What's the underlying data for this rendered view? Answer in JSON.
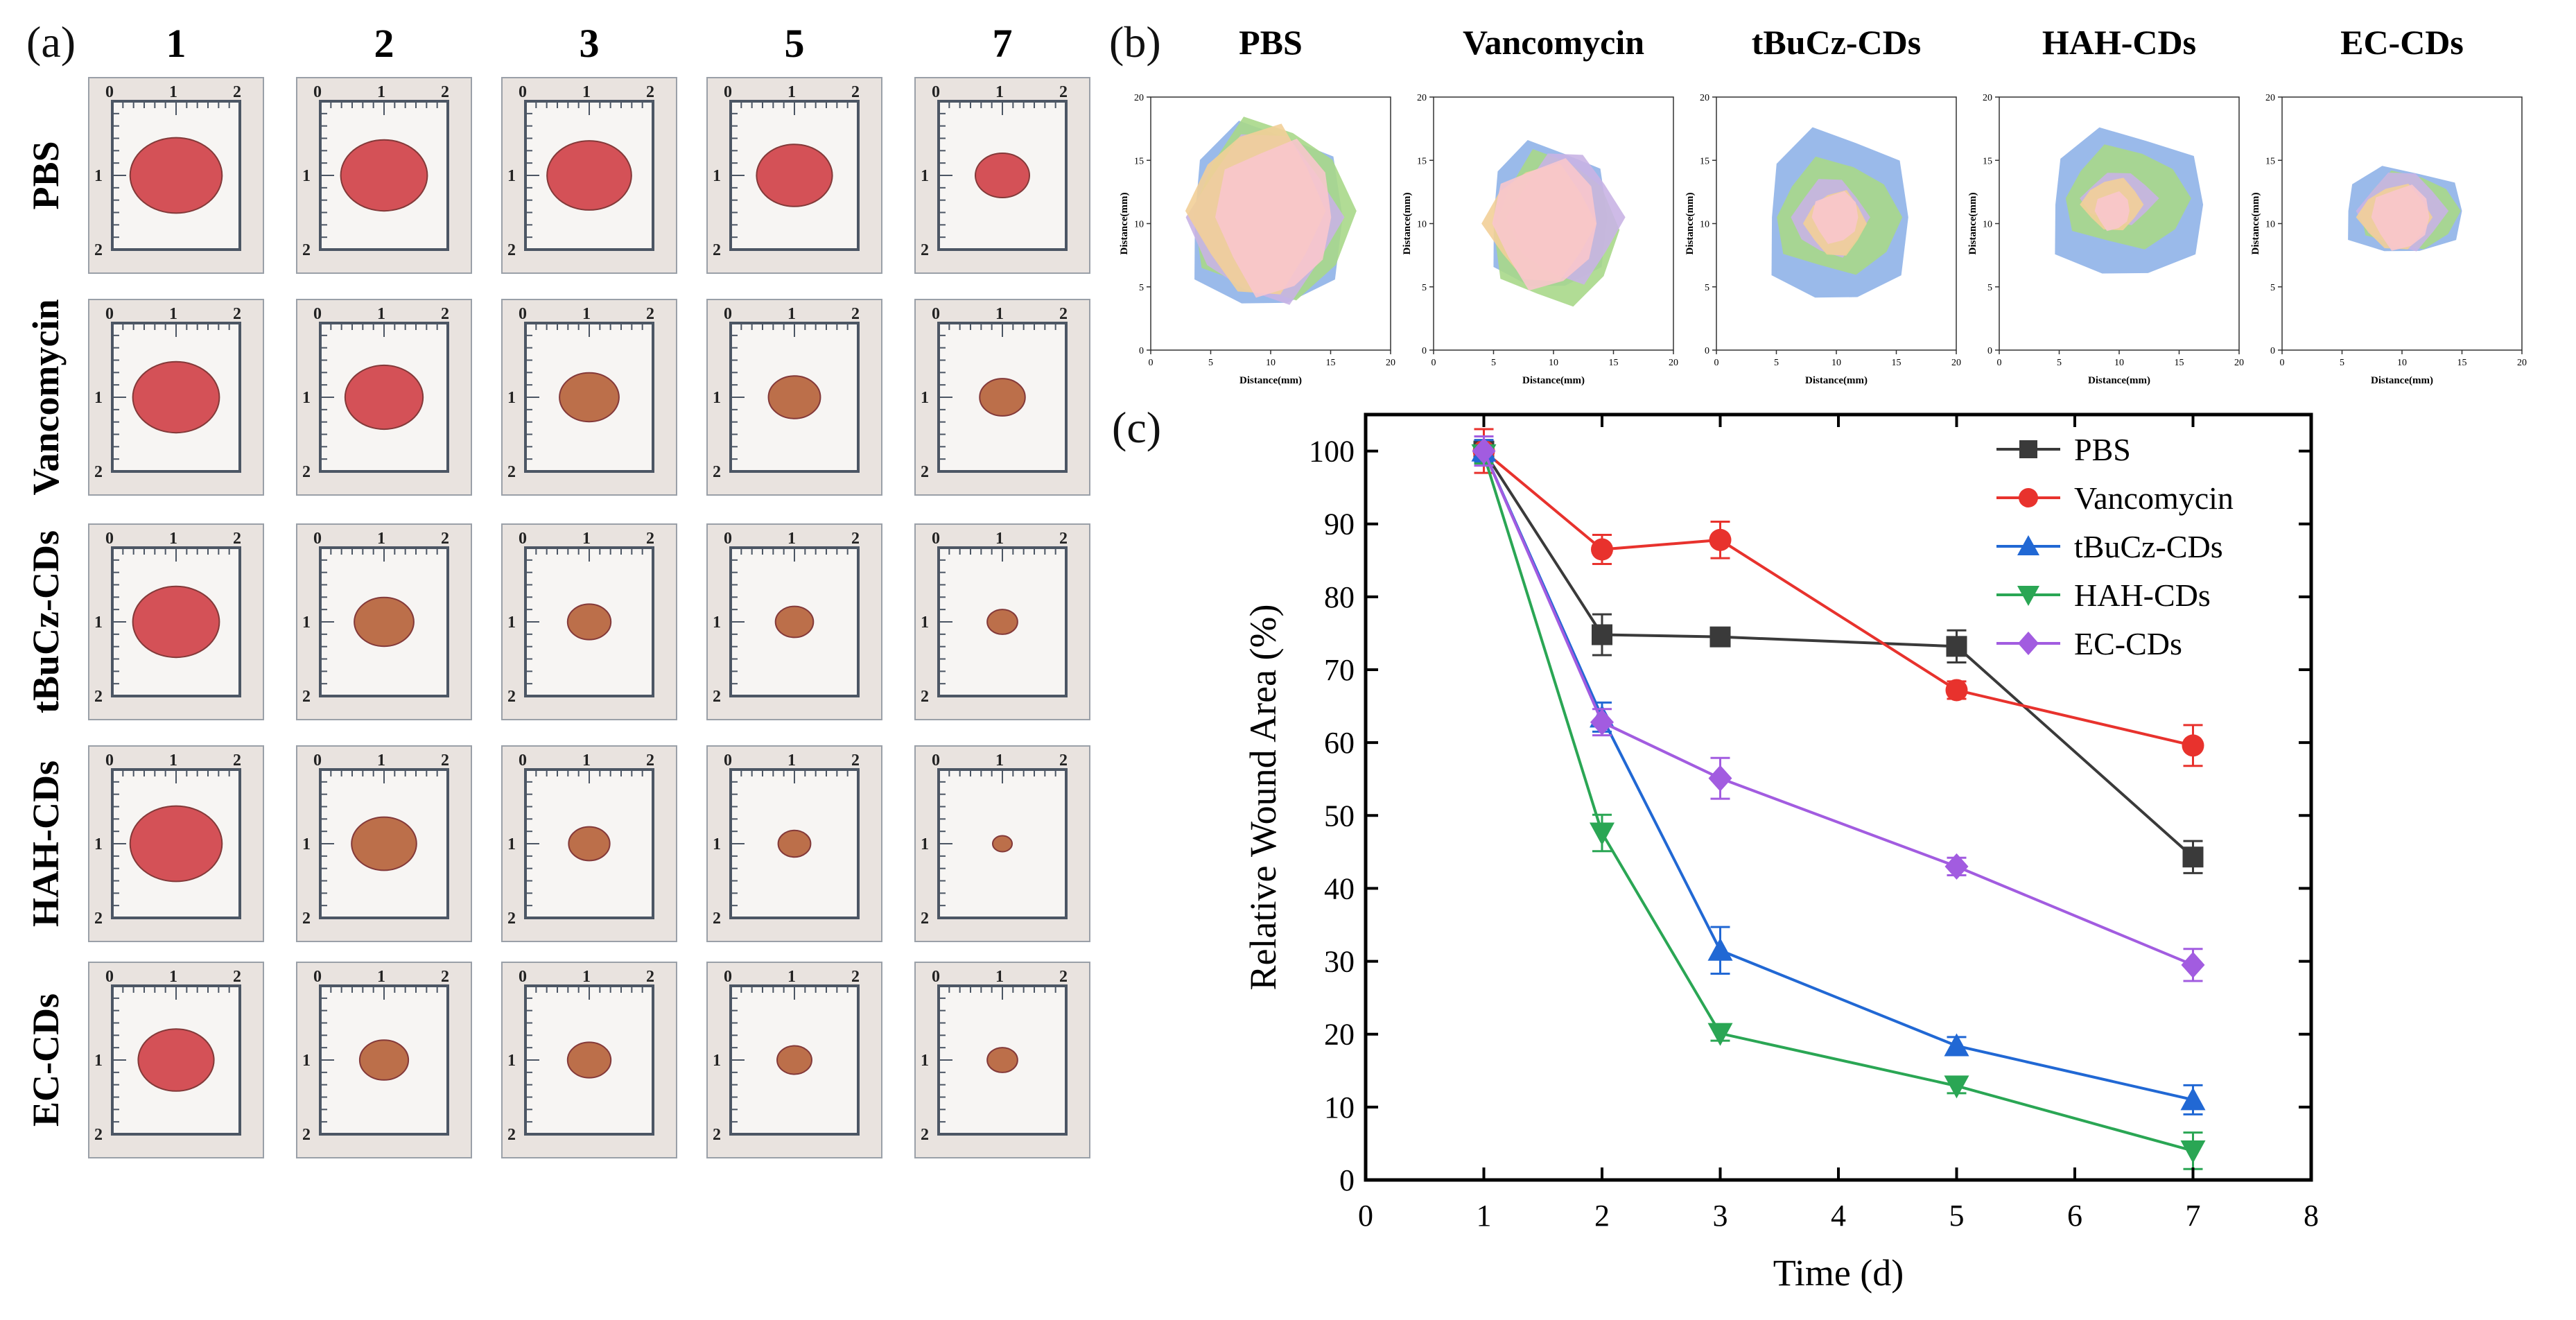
{
  "panel_labels": {
    "a": "(a)",
    "b": "(b)",
    "c": "(c)"
  },
  "photos": {
    "days": [
      "1",
      "2",
      "3",
      "5",
      "7"
    ],
    "groups": [
      "PBS",
      "Vancomycin",
      "tBuCz-CDs",
      "HAH-CDs",
      "EC-CDs"
    ],
    "ruler_ticks": [
      "0",
      "1",
      "2"
    ],
    "wound_size": [
      [
        0.85,
        0.8,
        0.78,
        0.7,
        0.5
      ],
      [
        0.8,
        0.72,
        0.55,
        0.48,
        0.42
      ],
      [
        0.8,
        0.55,
        0.4,
        0.35,
        0.28
      ],
      [
        0.85,
        0.6,
        0.38,
        0.3,
        0.18
      ],
      [
        0.7,
        0.45,
        0.4,
        0.32,
        0.28
      ]
    ],
    "colors": {
      "skin": "#e9e3df",
      "ruler": "#4c5664",
      "wound_fresh": "#d2444a",
      "wound_dry": "#b8643c"
    }
  },
  "traces": {
    "groups": [
      "PBS",
      "Vancomycin",
      "tBuCz-CDs",
      "HAH-CDs",
      "EC-CDs"
    ],
    "xlabel": "Distance(mm)",
    "ylabel": "Distance(mm)",
    "xticks": [
      "0",
      "5",
      "10",
      "15",
      "20"
    ],
    "yticks": [
      "0",
      "5",
      "10",
      "15",
      "20"
    ],
    "day_colors": [
      "#8fb2e8",
      "#a8d88a",
      "#c9b4e4",
      "#f2cf98",
      "#f8c6cc"
    ],
    "layers": [
      [
        [
          9.5,
          10.5,
          6.5,
          7.5
        ],
        [
          10,
          11,
          6.5,
          7
        ],
        [
          9.5,
          10.5,
          6,
          6.5
        ],
        [
          9,
          11,
          5.5,
          6.5
        ],
        [
          10.5,
          10.5,
          5,
          6
        ]
      ],
      [
        [
          9.5,
          10.5,
          5,
          6
        ],
        [
          10,
          9.5,
          5,
          6
        ],
        [
          11,
          10.5,
          4.5,
          5
        ],
        [
          9,
          10,
          4.5,
          4.5
        ],
        [
          9.5,
          10,
          4.5,
          5
        ]
      ],
      [
        [
          10,
          10.5,
          6,
          7
        ],
        [
          10,
          10.5,
          5,
          4.5
        ],
        [
          9.5,
          10.5,
          3,
          3
        ],
        [
          10,
          10,
          2.5,
          2.5
        ],
        [
          10,
          10.5,
          2,
          2
        ]
      ],
      [
        [
          10.5,
          11.5,
          6.5,
          6
        ],
        [
          10.5,
          12,
          5,
          4
        ],
        [
          10,
          12,
          3,
          2
        ],
        [
          9.5,
          11.5,
          2.5,
          2
        ],
        [
          9.5,
          11,
          1.5,
          1.5
        ]
      ],
      [
        [
          10,
          11,
          5,
          3.5
        ],
        [
          10.5,
          11,
          4,
          3
        ],
        [
          10,
          11,
          3.5,
          3
        ],
        [
          9.5,
          10.5,
          3,
          2.5
        ],
        [
          10,
          10.5,
          2.5,
          2.5
        ]
      ]
    ]
  },
  "chart_data": {
    "type": "line",
    "xlabel": "Time (d)",
    "ylabel": "Relative Wound Area (%)",
    "xlim": [
      0,
      8
    ],
    "ylim": [
      0,
      105
    ],
    "xticks": [
      0,
      1,
      2,
      3,
      4,
      5,
      6,
      7,
      8
    ],
    "yticks": [
      0,
      10,
      20,
      30,
      40,
      50,
      60,
      70,
      80,
      90,
      100
    ],
    "x": [
      1,
      2,
      3,
      5,
      7
    ],
    "legend_position": "top-right",
    "series": [
      {
        "name": "PBS",
        "color": "#3a3a3a",
        "marker": "square",
        "values": [
          100,
          74.8,
          74.5,
          73.2,
          44.3
        ],
        "errors": [
          1.5,
          2.8,
          1.0,
          2.2,
          2.2
        ]
      },
      {
        "name": "Vancomycin",
        "color": "#e8322d",
        "marker": "circle",
        "values": [
          100,
          86.5,
          87.8,
          67.2,
          59.6
        ],
        "errors": [
          3.0,
          2.0,
          2.5,
          1.2,
          2.8
        ]
      },
      {
        "name": "tBuCz-CDs",
        "color": "#2168d4",
        "marker": "triangle-up",
        "values": [
          100,
          63.5,
          31.5,
          18.4,
          11.0
        ],
        "errors": [
          1.5,
          2.0,
          3.2,
          1.2,
          2.0
        ]
      },
      {
        "name": "HAH-CDs",
        "color": "#2aa654",
        "marker": "triangle-down",
        "values": [
          99.5,
          47.6,
          20.1,
          12.9,
          4.0
        ],
        "errors": [
          1.2,
          2.5,
          1.0,
          1.0,
          2.5
        ]
      },
      {
        "name": "EC-CDs",
        "color": "#a25ce0",
        "marker": "diamond",
        "values": [
          100,
          62.8,
          55.1,
          43.0,
          29.5
        ],
        "errors": [
          2.0,
          1.8,
          2.8,
          1.2,
          2.2
        ]
      }
    ]
  }
}
